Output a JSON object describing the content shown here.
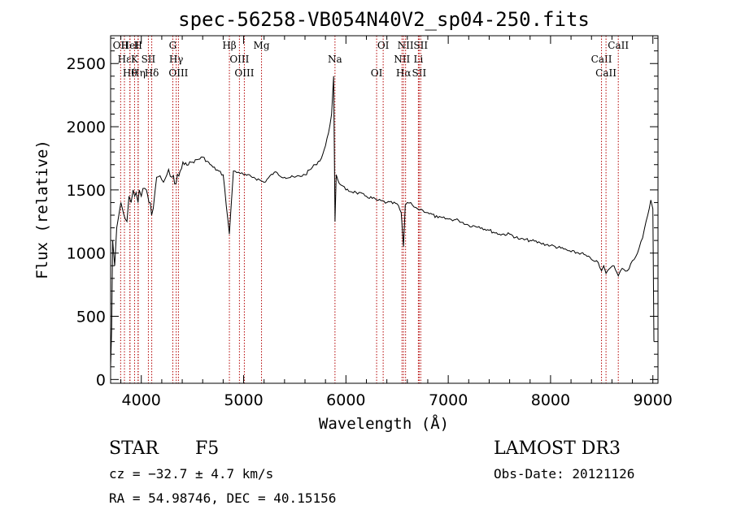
{
  "chart_data": {
    "type": "line",
    "title": "spec-56258-VB054N40V2_sp04-250.fits",
    "xlabel": "Wavelength (Å)",
    "ylabel": "Flux (relative)",
    "xlim": [
      3700,
      9050
    ],
    "ylim": [
      -30,
      2720
    ],
    "xticks": [
      4000,
      5000,
      6000,
      7000,
      8000,
      9000
    ],
    "yticks": [
      0,
      500,
      1000,
      1500,
      2000,
      2500
    ],
    "spectrum": {
      "x": [
        3700,
        3710,
        3720,
        3740,
        3760,
        3780,
        3800,
        3830,
        3860,
        3880,
        3900,
        3920,
        3935,
        3950,
        3968,
        3980,
        4000,
        4050,
        4101,
        4150,
        4200,
        4250,
        4300,
        4340,
        4380,
        4420,
        4500,
        4600,
        4700,
        4800,
        4861,
        4900,
        4950,
        5000,
        5100,
        5200,
        5300,
        5400,
        5500,
        5600,
        5700,
        5760,
        5800,
        5830,
        5860,
        5880,
        5893,
        5905,
        5920,
        5950,
        6000,
        6100,
        6200,
        6300,
        6400,
        6500,
        6540,
        6563,
        6580,
        6600,
        6650,
        6700,
        6750,
        6800,
        6900,
        7000,
        7100,
        7200,
        7300,
        7400,
        7500,
        7600,
        7700,
        7800,
        7900,
        8000,
        8100,
        8200,
        8300,
        8400,
        8450,
        8498,
        8520,
        8542,
        8580,
        8620,
        8662,
        8700,
        8750,
        8800,
        8850,
        8900,
        8950,
        8980,
        9000,
        9010
      ],
      "y": [
        100,
        400,
        1100,
        900,
        1200,
        1300,
        1400,
        1300,
        1250,
        1450,
        1400,
        1500,
        1450,
        1480,
        1400,
        1500,
        1450,
        1500,
        1300,
        1600,
        1580,
        1620,
        1600,
        1550,
        1650,
        1700,
        1720,
        1760,
        1680,
        1620,
        1150,
        1650,
        1640,
        1620,
        1600,
        1560,
        1640,
        1600,
        1600,
        1620,
        1700,
        1750,
        1850,
        1950,
        2100,
        2400,
        1250,
        1620,
        1580,
        1540,
        1500,
        1480,
        1450,
        1420,
        1400,
        1390,
        1320,
        1050,
        1380,
        1400,
        1380,
        1350,
        1340,
        1320,
        1280,
        1270,
        1260,
        1220,
        1210,
        1180,
        1150,
        1150,
        1110,
        1100,
        1080,
        1060,
        1040,
        1010,
        1000,
        950,
        940,
        860,
        900,
        840,
        880,
        900,
        820,
        880,
        860,
        940,
        1000,
        1120,
        1300,
        1420,
        1350,
        300
      ]
    },
    "line_ids": [
      {
        "w": 3798,
        "label": "OII"
      },
      {
        "w": 3835,
        "label": "Hε"
      },
      {
        "w": 3889,
        "label": "Hθ"
      },
      {
        "w": 3889,
        "label": "HeI"
      },
      {
        "w": 3934,
        "label": "K"
      },
      {
        "w": 3970,
        "label": "Hη"
      },
      {
        "w": 3968,
        "label": "H"
      },
      {
        "w": 4069,
        "label": "SII"
      },
      {
        "w": 4102,
        "label": "Hδ"
      },
      {
        "w": 4308,
        "label": "G"
      },
      {
        "w": 4341,
        "label": "Hγ"
      },
      {
        "w": 4363,
        "label": "OIII"
      },
      {
        "w": 4861,
        "label": "Hβ"
      },
      {
        "w": 4959,
        "label": "OIII"
      },
      {
        "w": 5007,
        "label": "OIII"
      },
      {
        "w": 5175,
        "label": "Mg"
      },
      {
        "w": 5893,
        "label": "Na"
      },
      {
        "w": 6300,
        "label": "OI"
      },
      {
        "w": 6364,
        "label": "OI"
      },
      {
        "w": 6548,
        "label": "NII"
      },
      {
        "w": 6563,
        "label": "Hα"
      },
      {
        "w": 6583,
        "label": "NII"
      },
      {
        "w": 6708,
        "label": "Li"
      },
      {
        "w": 6716,
        "label": "SII"
      },
      {
        "w": 6731,
        "label": "SII"
      },
      {
        "w": 8498,
        "label": "CaII"
      },
      {
        "w": 8542,
        "label": "CaII"
      },
      {
        "w": 8662,
        "label": "CaII"
      }
    ]
  },
  "info": {
    "class": "STAR",
    "subclass": "F5",
    "survey": "LAMOST DR3",
    "cz": "cz = −32.7 ± 4.7 km/s",
    "obs_date": "Obs-Date: 20121126",
    "coords": "RA =  54.98746, DEC =  40.15156"
  }
}
